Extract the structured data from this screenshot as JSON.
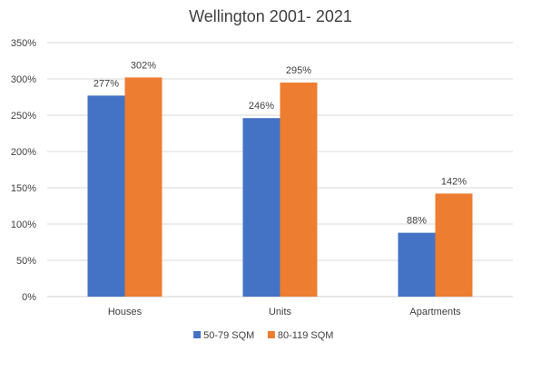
{
  "chart_data": {
    "type": "bar",
    "title": "Wellington 2001- 2021",
    "categories": [
      "Houses",
      "Units",
      "Apartments"
    ],
    "series": [
      {
        "name": "50-79 SQM",
        "values": [
          277,
          246,
          88
        ],
        "labels": [
          "277%",
          "246%",
          "88%"
        ],
        "color": "#4472C4"
      },
      {
        "name": "80-119 SQM",
        "values": [
          302,
          295,
          142
        ],
        "labels": [
          "302%",
          "295%",
          "142%"
        ],
        "color": "#ED7D31"
      }
    ],
    "ylim": [
      0,
      350
    ],
    "yticks": [
      0,
      50,
      100,
      150,
      200,
      250,
      300,
      350
    ],
    "ytick_labels": [
      "0%",
      "50%",
      "100%",
      "150%",
      "200%",
      "250%",
      "300%",
      "350%"
    ],
    "gridlines": true,
    "legend_position": "bottom",
    "xlabel": "",
    "ylabel": ""
  }
}
